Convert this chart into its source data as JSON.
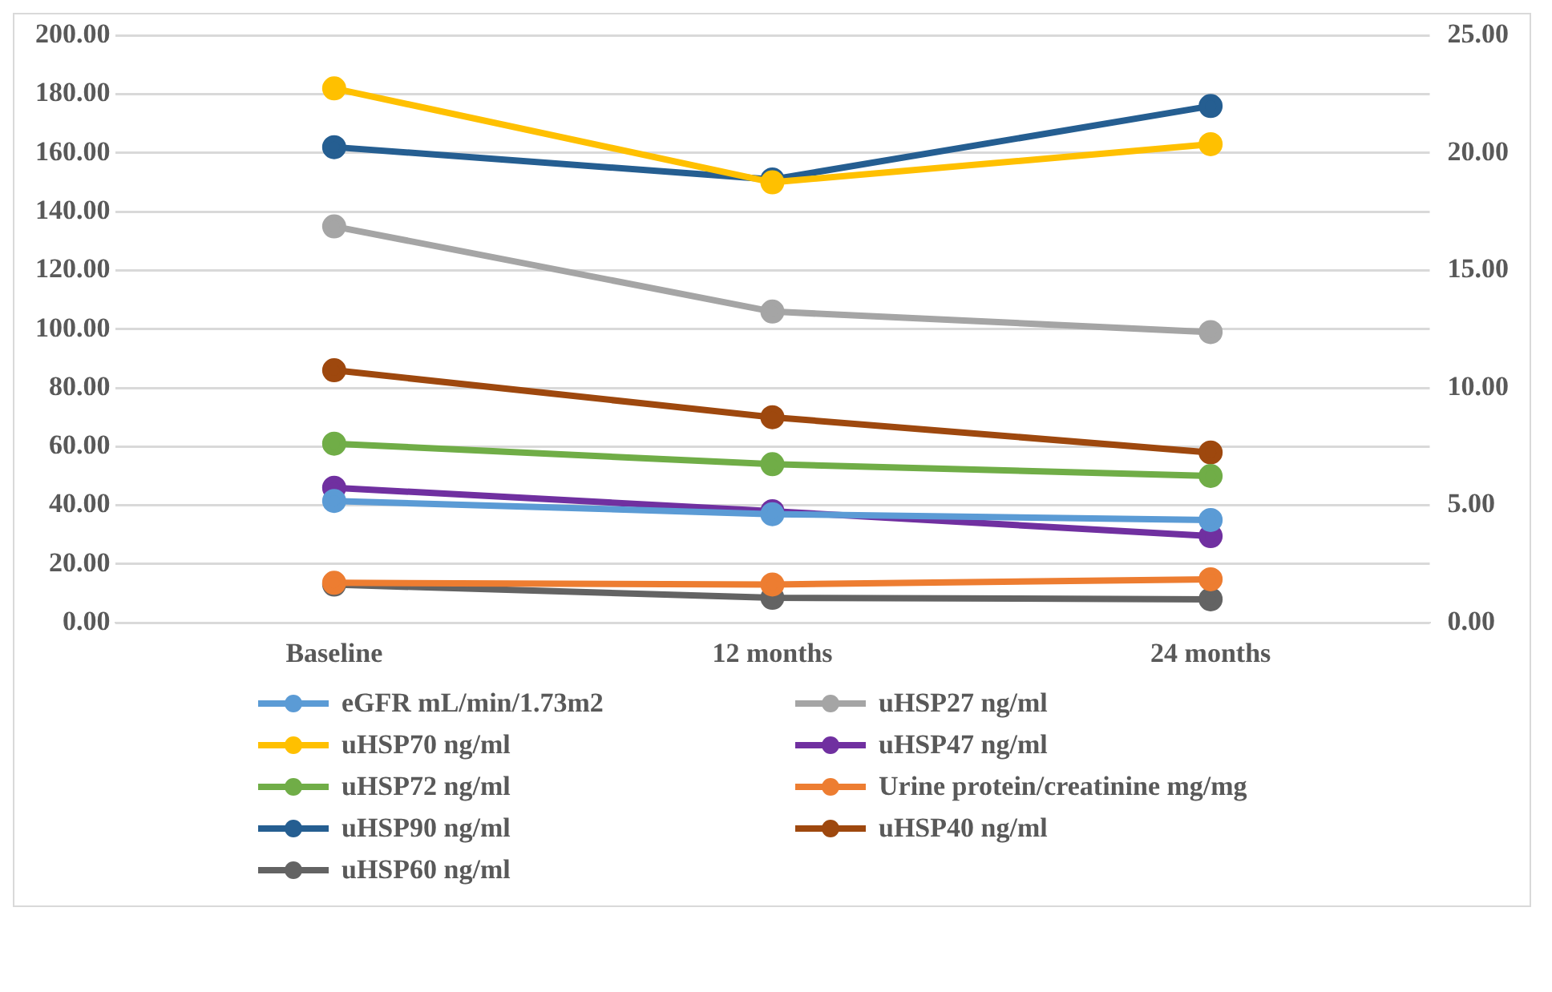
{
  "chart_data": {
    "type": "line",
    "categories": [
      "Baseline",
      "12 months",
      "24 months"
    ],
    "series": [
      {
        "name": "eGFR mL/min/1.73m2",
        "color": "#5b9bd5",
        "values": [
          41.5,
          37,
          35
        ]
      },
      {
        "name": "uHSP27 ng/ml",
        "color": "#a5a5a5",
        "values": [
          135,
          106,
          99
        ]
      },
      {
        "name": "uHSP70 ng/ml",
        "color": "#ffc000",
        "values": [
          182,
          150,
          163
        ]
      },
      {
        "name": "uHSP47 ng/ml",
        "color": "#7030a0",
        "values": [
          46,
          38,
          29.5
        ]
      },
      {
        "name": "uHSP72 ng/ml",
        "color": "#70ad47",
        "values": [
          61,
          54,
          50
        ]
      },
      {
        "name": "Urine protein/creatinine mg/mg",
        "color": "#ed7d31",
        "axis": "y2",
        "values": [
          1.7,
          1.63,
          1.85
        ]
      },
      {
        "name": "uHSP90 ng/ml",
        "color": "#255e91",
        "values": [
          162,
          151,
          176
        ]
      },
      {
        "name": "uHSP40 ng/ml",
        "color": "#9e480e",
        "values": [
          86,
          70,
          58
        ]
      },
      {
        "name": "uHSP60 ng/ml",
        "color": "#636363",
        "values": [
          13,
          8.5,
          8
        ]
      }
    ],
    "ylim": [
      0,
      200
    ],
    "yticks": [
      {
        "value": 0,
        "label": "0.00"
      },
      {
        "value": 20,
        "label": "20.00"
      },
      {
        "value": 40,
        "label": "40.00"
      },
      {
        "value": 60,
        "label": "60.00"
      },
      {
        "value": 80,
        "label": "80.00"
      },
      {
        "value": 100,
        "label": "100.00"
      },
      {
        "value": 120,
        "label": "120.00"
      },
      {
        "value": 140,
        "label": "140.00"
      },
      {
        "value": 160,
        "label": "160.00"
      },
      {
        "value": 180,
        "label": "180.00"
      },
      {
        "value": 200,
        "label": "200.00"
      }
    ],
    "y2lim": [
      0,
      25
    ],
    "y2ticks": [
      {
        "value": 0,
        "label": "0.00"
      },
      {
        "value": 5,
        "label": "5.00"
      },
      {
        "value": 10,
        "label": "10.00"
      },
      {
        "value": 15,
        "label": "15.00"
      },
      {
        "value": 20,
        "label": "20.00"
      },
      {
        "value": 25,
        "label": "25.00"
      }
    ],
    "grid": "y",
    "legend": "bottom",
    "marker": "circle",
    "line_style": "solid"
  }
}
